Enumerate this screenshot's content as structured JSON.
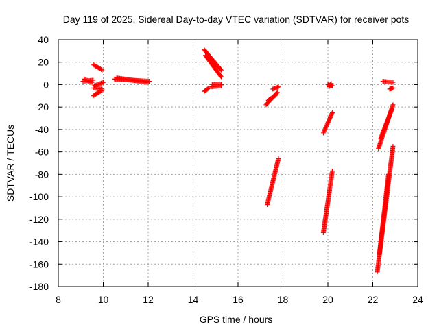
{
  "chart_data": {
    "type": "scatter",
    "title": "Day 119 of 2025, Sidereal Day-to-day VTEC variation (SDTVAR) for receiver pots",
    "xlabel": "GPS time / hours",
    "ylabel": "SDTVAR / TECUs",
    "xlim": [
      8,
      24
    ],
    "ylim": [
      -180,
      40
    ],
    "xticks": [
      8,
      10,
      12,
      14,
      16,
      18,
      20,
      22,
      24
    ],
    "yticks": [
      -180,
      -160,
      -140,
      -120,
      -100,
      -80,
      -60,
      -40,
      -20,
      0,
      20,
      40
    ],
    "grid": true,
    "marker": "+",
    "series_color": "#ff0000",
    "segments": [
      {
        "t0": 9.1,
        "t1": 9.55,
        "v0": 3,
        "v1": 4
      },
      {
        "t0": 9.15,
        "t1": 9.5,
        "v0": 5,
        "v1": 2
      },
      {
        "t0": 9.55,
        "t1": 9.95,
        "v0": 18,
        "v1": 13
      },
      {
        "t0": 9.6,
        "t1": 10.0,
        "v0": -1,
        "v1": 2
      },
      {
        "t0": 9.55,
        "t1": 9.95,
        "v0": -3,
        "v1": -4
      },
      {
        "t0": 9.55,
        "t1": 9.95,
        "v0": -10,
        "v1": -5
      },
      {
        "t0": 10.5,
        "t1": 12.05,
        "v0": 5,
        "v1": 3
      },
      {
        "t0": 10.6,
        "t1": 11.95,
        "v0": 6,
        "v1": 2
      },
      {
        "t0": 14.5,
        "t1": 15.25,
        "v0": 31,
        "v1": 13
      },
      {
        "t0": 14.55,
        "t1": 15.25,
        "v0": 26,
        "v1": 7
      },
      {
        "t0": 14.5,
        "t1": 14.7,
        "v0": -6,
        "v1": -3
      },
      {
        "t0": 14.85,
        "t1": 15.25,
        "v0": 0,
        "v1": 0
      },
      {
        "t0": 14.8,
        "t1": 15.25,
        "v0": -2,
        "v1": -1
      },
      {
        "t0": 17.25,
        "t1": 17.75,
        "v0": -18,
        "v1": -7
      },
      {
        "t0": 17.35,
        "t1": 17.7,
        "v0": -14,
        "v1": -9
      },
      {
        "t0": 17.55,
        "t1": 17.8,
        "v0": -4,
        "v1": -2
      },
      {
        "t0": 17.3,
        "t1": 17.8,
        "v0": -107,
        "v1": -66
      },
      {
        "t0": 19.8,
        "t1": 20.2,
        "v0": -43,
        "v1": -25
      },
      {
        "t0": 20.0,
        "t1": 20.2,
        "v0": 0,
        "v1": -1
      },
      {
        "t0": 20.05,
        "t1": 20.15,
        "v0": -2,
        "v1": 1
      },
      {
        "t0": 19.8,
        "t1": 20.2,
        "v0": -132,
        "v1": -77
      },
      {
        "t0": 22.45,
        "t1": 22.9,
        "v0": 3,
        "v1": 2
      },
      {
        "t0": 22.75,
        "t1": 22.9,
        "v0": -4,
        "v1": -3
      },
      {
        "t0": 22.25,
        "t1": 22.9,
        "v0": -57,
        "v1": -18
      },
      {
        "t0": 22.35,
        "t1": 22.85,
        "v0": -48,
        "v1": -22
      },
      {
        "t0": 22.2,
        "t1": 22.9,
        "v0": -167,
        "v1": -55
      },
      {
        "t0": 22.3,
        "t1": 22.7,
        "v0": -150,
        "v1": -80
      }
    ]
  }
}
